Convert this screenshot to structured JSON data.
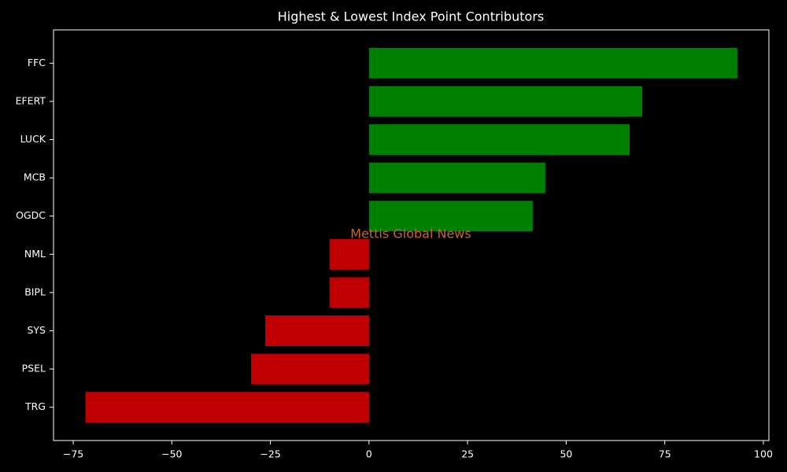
{
  "chart_data": {
    "type": "barh",
    "title": "Highest & Lowest Index Point Contributors",
    "categories": [
      "FFC",
      "EFERT",
      "LUCK",
      "MCB",
      "OGDC",
      "NML",
      "BIPL",
      "SYS",
      "PSEL",
      "TRG"
    ],
    "values": [
      93.4,
      69.3,
      66.1,
      44.7,
      41.5,
      -10.0,
      -10.0,
      -26.3,
      -29.9,
      -71.9
    ],
    "colors": [
      "#008000",
      "#008000",
      "#008000",
      "#008000",
      "#008000",
      "#c00000",
      "#c00000",
      "#c00000",
      "#c00000",
      "#c00000"
    ],
    "xlim": [
      -80,
      101.4
    ],
    "xticks": [
      {
        "value": -75,
        "label": "−75"
      },
      {
        "value": -50,
        "label": "−50"
      },
      {
        "value": -25,
        "label": "−25"
      },
      0,
      25,
      50,
      75,
      100
    ],
    "annotation": "Mettis Global News",
    "annotation_color": "#c8641e"
  }
}
